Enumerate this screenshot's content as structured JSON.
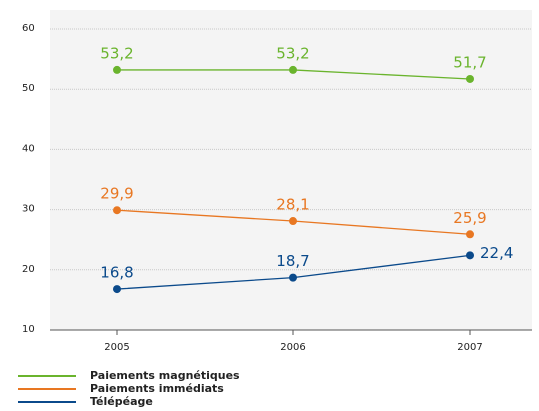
{
  "chart_data": {
    "type": "line",
    "categories": [
      "2005",
      "2006",
      "2007"
    ],
    "series": [
      {
        "name": "Paiements magnétiques",
        "color": "#6ab42d",
        "values": [
          53.2,
          53.2,
          51.7
        ],
        "value_labels": [
          "53,2",
          "53,2",
          "51,7"
        ]
      },
      {
        "name": "Paiements immédiats",
        "color": "#e87722",
        "values": [
          29.9,
          28.1,
          25.9
        ],
        "value_labels": [
          "29,9",
          "28,1",
          "25,9"
        ]
      },
      {
        "name": "Télépéage",
        "color": "#0b4a8b",
        "values": [
          16.8,
          18.7,
          22.4
        ],
        "value_labels": [
          "16,8",
          "18,7",
          "22,4"
        ]
      }
    ],
    "ylim": [
      10,
      60
    ],
    "yticks": [
      10,
      20,
      30,
      40,
      50,
      60
    ],
    "grid": true
  }
}
